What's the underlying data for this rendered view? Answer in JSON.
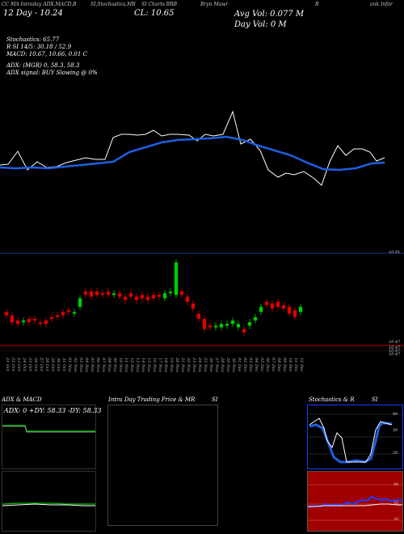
{
  "header": {
    "line1_left": "CC MA Intraday ADX,MACD,B",
    "line1_mid1": "SI,Stochastics,MR",
    "line1_mid2": "SI Charts BRB",
    "line1_mid3": "Bryn Mawr",
    "line1_mid4": "B",
    "line1_right": "ank Infor",
    "range": "12 Day - 10.24",
    "cl": "CL: 10.65",
    "avg_vol": "Avg Vol: 0.077 M",
    "day_vol": "Day Vol: 0  M"
  },
  "indicators": {
    "stochastics": "Stochastics: 65.77",
    "rsi": "R             SI 14/5: 30.18  / 52.9",
    "macd": "MACD: 10.67,  10.66, 0.01 C",
    "adx": "ADX:                 (MGR) 0,  58.3,  58.3",
    "adx_signal": "ADX  signal:                         BUY Slowing @ 0%"
  },
  "price_axis": {
    "top": "10.91",
    "bottom1": "10.47",
    "bottom2": "10.47",
    "bottom3": "10.47",
    "bottom4": "10.47"
  },
  "dates": [
    "21 Oct",
    "22 Oct",
    "23 Oct",
    "24 Oct",
    "25 Oct",
    "26 Oct",
    "27 Oct",
    "28 Oct",
    "29 Oct",
    "30 Oct",
    "31 Oct",
    "01 Nov",
    "02 Nov",
    "03 Nov",
    "04 Nov",
    "05 Nov",
    "06 Nov",
    "07 Nov",
    "08 Nov",
    "09 Nov",
    "10 Nov",
    "11 Nov",
    "12 Nov",
    "13 Nov",
    "14 Nov",
    "15 Nov",
    "16 Nov",
    "17 Nov",
    "18 Nov",
    "19 Nov",
    "20 Nov",
    "21 Nov",
    "22 Nov",
    "23 Nov",
    "24 Nov",
    "25 Nov",
    "26 Nov",
    "27 Nov",
    "28 Nov",
    "29 Nov",
    "30 Nov",
    "01 Dec",
    "02 Dec",
    "03 Dec",
    "04 Dec",
    "05 Dec",
    "06 Dec",
    "07 Dec",
    "08 Dec",
    "09 Dec",
    "10 Dec",
    "11 Dec",
    "12 Dec"
  ],
  "panels": {
    "adx_title": "ADX  & MACD",
    "adx_values": "ADX: 0  +DY: 58.33  -DY: 58.33",
    "intra_title": "Intra  Day Trading Price  & MR",
    "intra_si": "SI",
    "stoch_title": "Stochastics & R",
    "stoch_si": "SI",
    "stoch_ticks": [
      "80",
      "50",
      "20"
    ],
    "rsi_ticks": [
      "80",
      "50",
      "20"
    ]
  },
  "colors": {
    "ma_line": "#1e5fe0",
    "price_line": "#ffffff",
    "up_candle": "#00cc00",
    "down_candle": "#e00000",
    "red_line": "#c00000",
    "adx_green": "#00c000",
    "rsi_bg": "#a00000",
    "stoch_bg": "#000000"
  },
  "chart_data": {
    "type": "candlestick",
    "title": "Bryn Mawr Bank Infor (BRB)",
    "x": [
      "21 Oct",
      "22 Oct",
      "23 Oct",
      "24 Oct",
      "25 Oct",
      "26 Oct",
      "27 Oct",
      "28 Oct",
      "29 Oct",
      "30 Oct",
      "31 Oct",
      "01 Nov",
      "02 Nov",
      "03 Nov",
      "04 Nov",
      "05 Nov",
      "06 Nov",
      "07 Nov",
      "08 Nov",
      "09 Nov",
      "10 Nov",
      "11 Nov",
      "12 Nov",
      "13 Nov",
      "14 Nov",
      "15 Nov",
      "16 Nov",
      "17 Nov",
      "18 Nov",
      "19 Nov",
      "20 Nov",
      "21 Nov",
      "22 Nov",
      "23 Nov",
      "24 Nov",
      "25 Nov",
      "26 Nov",
      "27 Nov",
      "28 Nov",
      "29 Nov",
      "30 Nov",
      "01 Dec",
      "02 Dec",
      "03 Dec",
      "04 Dec",
      "05 Dec",
      "06 Dec",
      "07 Dec",
      "08 Dec",
      "09 Dec",
      "10 Dec",
      "11 Dec",
      "12 Dec"
    ],
    "ylim": [
      10.4,
      10.95
    ],
    "candles": [
      {
        "o": 10.62,
        "c": 10.6,
        "up": false
      },
      {
        "o": 10.6,
        "c": 10.56,
        "up": false
      },
      {
        "o": 10.57,
        "c": 10.55,
        "up": false
      },
      {
        "o": 10.56,
        "c": 10.57,
        "up": true
      },
      {
        "o": 10.58,
        "c": 10.56,
        "up": false
      },
      {
        "o": 10.58,
        "c": 10.57,
        "up": false
      },
      {
        "o": 10.56,
        "c": 10.55,
        "up": false
      },
      {
        "o": 10.57,
        "c": 10.55,
        "up": false
      },
      {
        "o": 10.59,
        "c": 10.58,
        "up": false
      },
      {
        "o": 10.6,
        "c": 10.59,
        "up": false
      },
      {
        "o": 10.62,
        "c": 10.6,
        "up": false
      },
      {
        "o": 10.63,
        "c": 10.62,
        "up": false
      },
      {
        "o": 10.61,
        "c": 10.62,
        "up": true
      },
      {
        "o": 10.65,
        "c": 10.7,
        "up": true
      },
      {
        "o": 10.74,
        "c": 10.72,
        "up": false
      },
      {
        "o": 10.74,
        "c": 10.71,
        "up": false
      },
      {
        "o": 10.74,
        "c": 10.72,
        "up": false
      },
      {
        "o": 10.73,
        "c": 10.72,
        "up": false
      },
      {
        "o": 10.74,
        "c": 10.72,
        "up": false
      },
      {
        "o": 10.72,
        "c": 10.73,
        "up": true
      },
      {
        "o": 10.73,
        "c": 10.71,
        "up": false
      },
      {
        "o": 10.71,
        "c": 10.69,
        "up": false
      },
      {
        "o": 10.73,
        "c": 10.71,
        "up": false
      },
      {
        "o": 10.71,
        "c": 10.69,
        "up": false
      },
      {
        "o": 10.72,
        "c": 10.7,
        "up": false
      },
      {
        "o": 10.71,
        "c": 10.69,
        "up": false
      },
      {
        "o": 10.72,
        "c": 10.7,
        "up": false
      },
      {
        "o": 10.72,
        "c": 10.71,
        "up": false
      },
      {
        "o": 10.7,
        "c": 10.73,
        "up": true
      },
      {
        "o": 10.73,
        "c": 10.74,
        "up": true
      },
      {
        "o": 10.72,
        "c": 10.91,
        "up": true
      },
      {
        "o": 10.74,
        "c": 10.72,
        "up": false
      },
      {
        "o": 10.71,
        "c": 10.68,
        "up": false
      },
      {
        "o": 10.67,
        "c": 10.64,
        "up": false
      },
      {
        "o": 10.61,
        "c": 10.58,
        "up": false
      },
      {
        "o": 10.58,
        "c": 10.52,
        "up": false
      },
      {
        "o": 10.54,
        "c": 10.53,
        "up": false
      },
      {
        "o": 10.53,
        "c": 10.54,
        "up": true
      },
      {
        "o": 10.53,
        "c": 10.55,
        "up": true
      },
      {
        "o": 10.54,
        "c": 10.55,
        "up": true
      },
      {
        "o": 10.55,
        "c": 10.57,
        "up": true
      },
      {
        "o": 10.53,
        "c": 10.55,
        "up": true
      },
      {
        "o": 10.52,
        "c": 10.5,
        "up": false
      },
      {
        "o": 10.54,
        "c": 10.56,
        "up": true
      },
      {
        "o": 10.57,
        "c": 10.59,
        "up": true
      },
      {
        "o": 10.62,
        "c": 10.65,
        "up": true
      },
      {
        "o": 10.68,
        "c": 10.66,
        "up": false
      },
      {
        "o": 10.67,
        "c": 10.64,
        "up": false
      },
      {
        "o": 10.68,
        "c": 10.65,
        "up": false
      },
      {
        "o": 10.66,
        "c": 10.64,
        "up": false
      },
      {
        "o": 10.65,
        "c": 10.61,
        "up": false
      },
      {
        "o": 10.63,
        "c": 10.59,
        "up": false
      },
      {
        "o": 10.62,
        "c": 10.65,
        "up": true
      }
    ]
  }
}
